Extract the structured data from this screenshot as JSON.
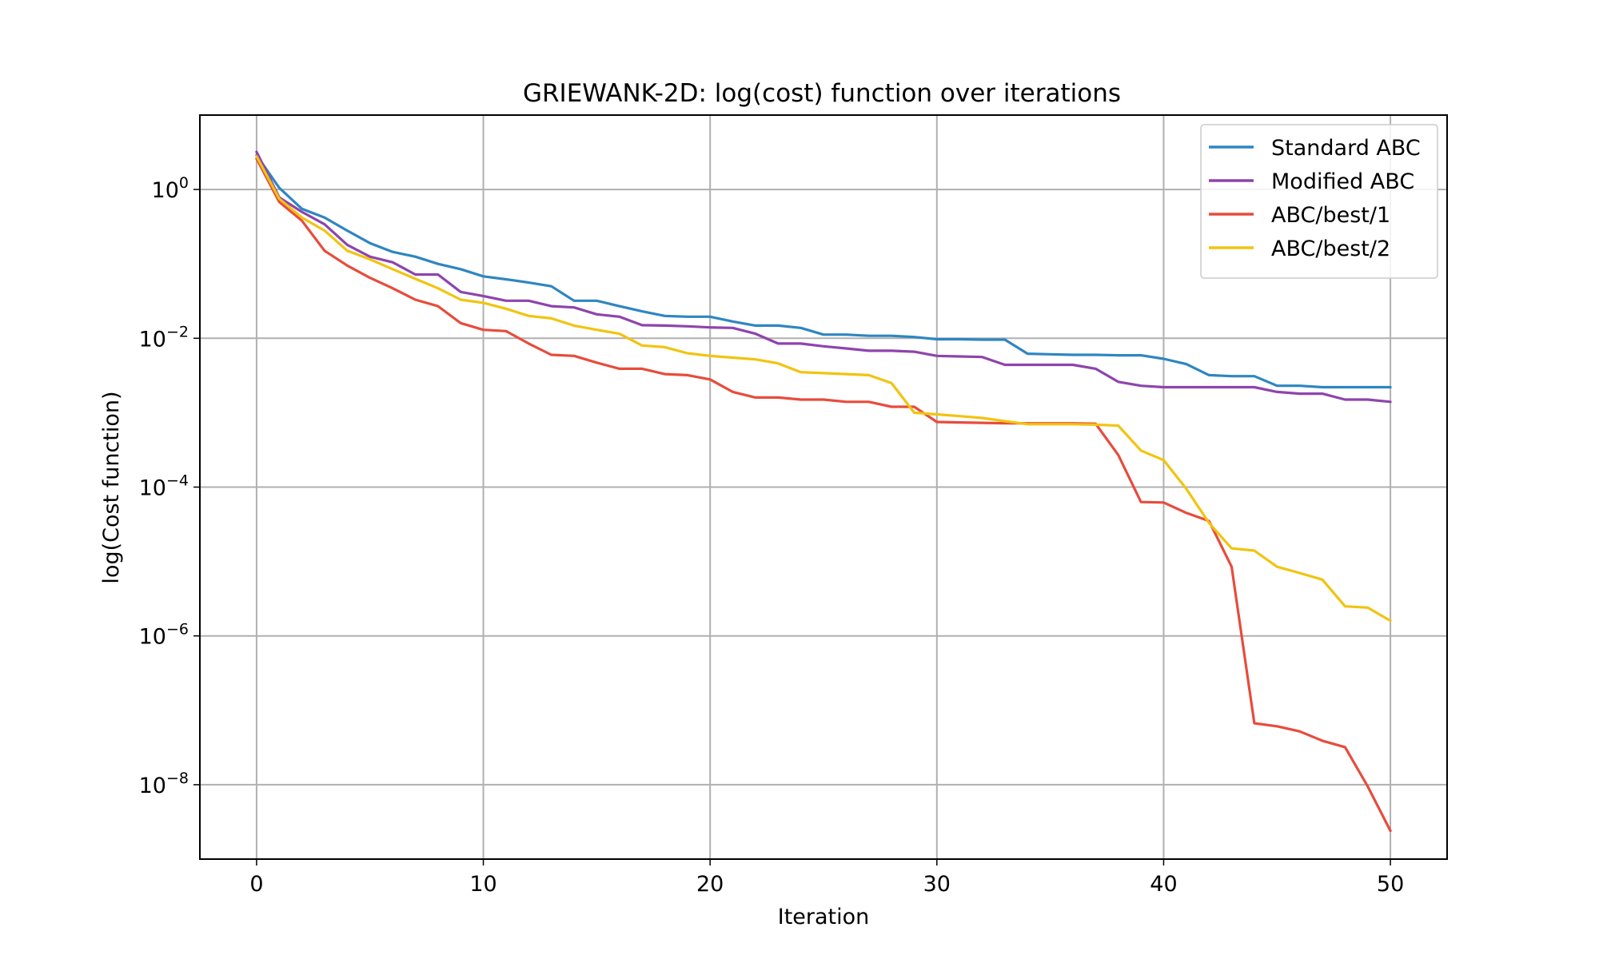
{
  "chart_data": {
    "type": "line",
    "title": "GRIEWANK-2D: log(cost) function over iterations",
    "xlabel": "Iteration",
    "ylabel": "log(Cost function)",
    "xlim": [
      -2.5,
      52.5
    ],
    "ylim": [
      1e-09,
      10
    ],
    "yscale": "log",
    "grid": true,
    "legend_position": "top-right",
    "x_ticks": [
      0,
      10,
      20,
      30,
      40,
      50
    ],
    "y_ticks": [
      {
        "value": 1,
        "base": "10",
        "exp": "0"
      },
      {
        "value": 0.01,
        "base": "10",
        "exp": "−2"
      },
      {
        "value": 0.0001,
        "base": "10",
        "exp": "−4"
      },
      {
        "value": 1e-06,
        "base": "10",
        "exp": "−6"
      },
      {
        "value": 1e-08,
        "base": "10",
        "exp": "−8"
      }
    ],
    "x": [
      0,
      1,
      2,
      3,
      4,
      5,
      6,
      7,
      8,
      9,
      10,
      11,
      12,
      13,
      14,
      15,
      16,
      17,
      18,
      19,
      20,
      21,
      22,
      23,
      24,
      25,
      26,
      27,
      28,
      29,
      30,
      31,
      32,
      33,
      34,
      35,
      36,
      37,
      38,
      39,
      40,
      41,
      42,
      43,
      44,
      45,
      46,
      47,
      48,
      49,
      50
    ],
    "series": [
      {
        "name": "Standard ABC",
        "color": "#2e86c1",
        "values": [
          2.9,
          1.05,
          0.55,
          0.42,
          0.28,
          0.19,
          0.145,
          0.125,
          0.1,
          0.085,
          0.068,
          0.062,
          0.056,
          0.05,
          0.032,
          0.032,
          0.027,
          0.023,
          0.02,
          0.0195,
          0.0195,
          0.0168,
          0.0148,
          0.0148,
          0.0138,
          0.0112,
          0.0112,
          0.0108,
          0.0108,
          0.0104,
          0.0097,
          0.0097,
          0.0096,
          0.0096,
          0.0062,
          0.0061,
          0.006,
          0.006,
          0.0059,
          0.0059,
          0.0053,
          0.0045,
          0.0032,
          0.0031,
          0.0031,
          0.0023,
          0.0023,
          0.0022,
          0.0022,
          0.0022,
          0.0022
        ]
      },
      {
        "name": "Modified ABC",
        "color": "#8e44ad",
        "values": [
          3.2,
          0.78,
          0.5,
          0.34,
          0.18,
          0.125,
          0.105,
          0.072,
          0.072,
          0.042,
          0.037,
          0.032,
          0.032,
          0.027,
          0.026,
          0.021,
          0.0195,
          0.015,
          0.0148,
          0.0145,
          0.014,
          0.0138,
          0.0115,
          0.0085,
          0.0085,
          0.0078,
          0.0073,
          0.0068,
          0.0068,
          0.0066,
          0.0058,
          0.0057,
          0.0056,
          0.0044,
          0.0044,
          0.0044,
          0.0044,
          0.0039,
          0.0026,
          0.0023,
          0.0022,
          0.0022,
          0.0022,
          0.0022,
          0.0022,
          0.0019,
          0.0018,
          0.0018,
          0.0015,
          0.0015,
          0.0014
        ]
      },
      {
        "name": "ABC/best/1",
        "color": "#e74c3c",
        "values": [
          2.6,
          0.68,
          0.38,
          0.15,
          0.095,
          0.065,
          0.047,
          0.033,
          0.027,
          0.016,
          0.013,
          0.0125,
          0.0085,
          0.006,
          0.0058,
          0.0047,
          0.0039,
          0.0039,
          0.0033,
          0.0032,
          0.0028,
          0.0019,
          0.0016,
          0.0016,
          0.0015,
          0.0015,
          0.0014,
          0.0014,
          0.0012,
          0.0012,
          0.00075,
          0.00074,
          0.00073,
          0.00072,
          0.00072,
          0.00072,
          0.00072,
          0.00071,
          0.00027,
          6.3e-05,
          6.2e-05,
          4.5e-05,
          3.5e-05,
          8.5e-06,
          6.7e-08,
          6.1e-08,
          5.2e-08,
          3.9e-08,
          3.2e-08,
          9.5e-09,
          2.4e-09
        ]
      },
      {
        "name": "ABC/best/2",
        "color": "#f1c40f",
        "values": [
          2.8,
          0.75,
          0.42,
          0.28,
          0.15,
          0.115,
          0.085,
          0.063,
          0.047,
          0.033,
          0.03,
          0.025,
          0.02,
          0.0185,
          0.0148,
          0.013,
          0.0115,
          0.008,
          0.0076,
          0.0063,
          0.0058,
          0.0055,
          0.0052,
          0.0046,
          0.0035,
          0.0034,
          0.0033,
          0.0032,
          0.0025,
          0.001,
          0.00095,
          0.0009,
          0.00085,
          0.00077,
          0.0007,
          0.0007,
          0.0007,
          0.00069,
          0.00067,
          0.00031,
          0.00023,
          9.5e-05,
          3.3e-05,
          1.5e-05,
          1.4e-05,
          8.5e-06,
          7e-06,
          5.7e-06,
          2.5e-06,
          2.4e-06,
          1.6e-06
        ]
      }
    ]
  }
}
